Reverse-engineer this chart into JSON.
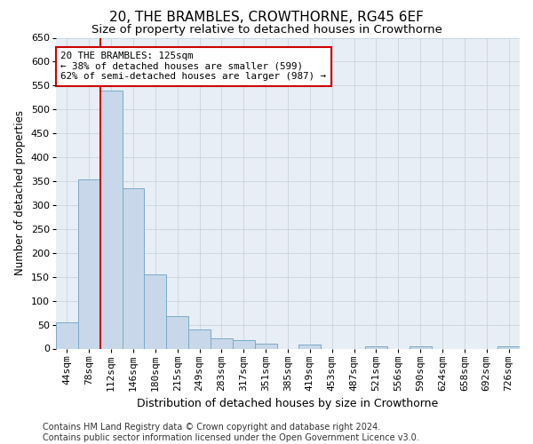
{
  "title": "20, THE BRAMBLES, CROWTHORNE, RG45 6EF",
  "subtitle": "Size of property relative to detached houses in Crowthorne",
  "xlabel": "Distribution of detached houses by size in Crowthorne",
  "ylabel": "Number of detached properties",
  "bar_labels": [
    "44sqm",
    "78sqm",
    "112sqm",
    "146sqm",
    "180sqm",
    "215sqm",
    "249sqm",
    "283sqm",
    "317sqm",
    "351sqm",
    "385sqm",
    "419sqm",
    "453sqm",
    "487sqm",
    "521sqm",
    "556sqm",
    "590sqm",
    "624sqm",
    "658sqm",
    "692sqm",
    "726sqm"
  ],
  "bar_values": [
    55,
    353,
    540,
    335,
    155,
    68,
    40,
    22,
    17,
    10,
    0,
    9,
    0,
    0,
    4,
    0,
    4,
    0,
    0,
    0,
    4
  ],
  "bar_color": "#c8d8ea",
  "bar_edgecolor": "#7aaac8",
  "red_line_bin_index": 2,
  "annotation_text": "20 THE BRAMBLES: 125sqm\n← 38% of detached houses are smaller (599)\n62% of semi-detached houses are larger (987) →",
  "annotation_box_color": "#ffffff",
  "annotation_box_edgecolor": "#cc0000",
  "red_line_color": "#cc0000",
  "ylim": [
    0,
    650
  ],
  "yticks": [
    0,
    50,
    100,
    150,
    200,
    250,
    300,
    350,
    400,
    450,
    500,
    550,
    600,
    650
  ],
  "grid_color": "#c8d4e0",
  "background_color": "#e8eef5",
  "footer_text": "Contains HM Land Registry data © Crown copyright and database right 2024.\nContains public sector information licensed under the Open Government Licence v3.0.",
  "title_fontsize": 11,
  "subtitle_fontsize": 9.5,
  "xlabel_fontsize": 9,
  "ylabel_fontsize": 8.5,
  "tick_fontsize": 8,
  "footer_fontsize": 7
}
